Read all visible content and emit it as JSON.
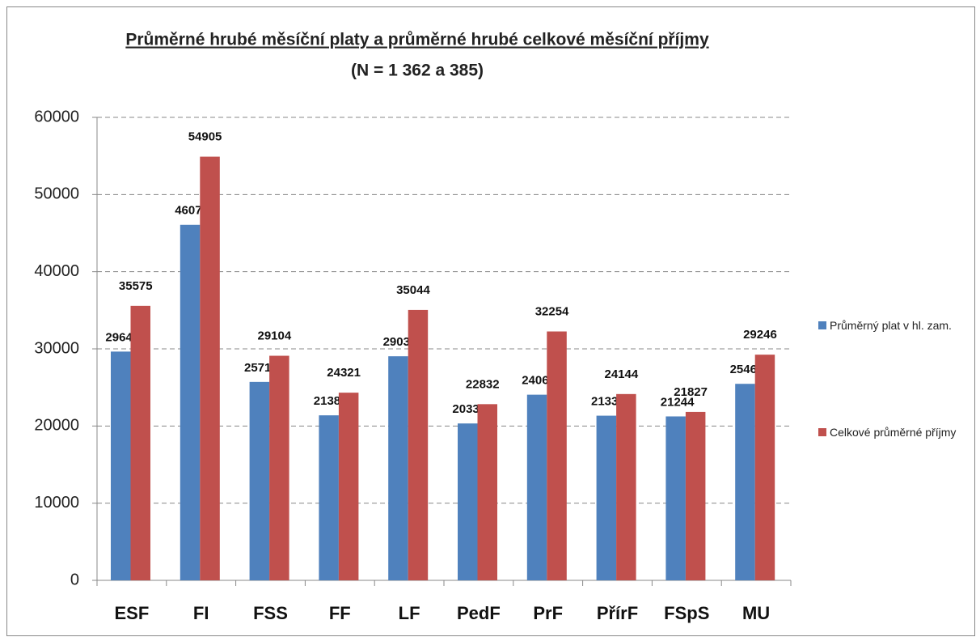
{
  "chart_data": {
    "type": "bar",
    "title": "Průměrné hrubé měsíční platy a průměrné hrubé celkové měsíční příjmy",
    "subtitle": "(N = 1 362 a 385)",
    "categories": [
      "ESF",
      "FI",
      "FSS",
      "FF",
      "LF",
      "PedF",
      "PrF",
      "PřírF",
      "FSpS",
      "MU"
    ],
    "series": [
      {
        "name": "Průměrný plat v hl. zam.",
        "color": "#4f81bd",
        "values": [
          29646,
          46073,
          25715,
          21385,
          29039,
          20331,
          24060,
          21338,
          21244,
          25466
        ]
      },
      {
        "name": "Celkové průměrné příjmy",
        "color": "#c0504d",
        "values": [
          35575,
          54905,
          29104,
          24321,
          35044,
          22832,
          32254,
          24144,
          21827,
          29246
        ]
      }
    ],
    "ylim": [
      0,
      60000
    ],
    "yticks": [
      0,
      10000,
      20000,
      30000,
      40000,
      50000,
      60000
    ],
    "grid": true,
    "legend": "right"
  }
}
